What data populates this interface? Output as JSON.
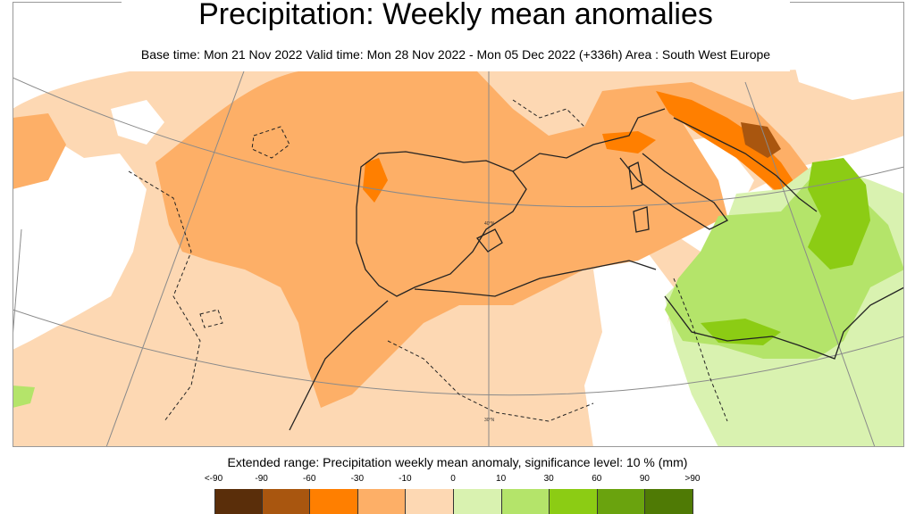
{
  "header": {
    "title": "Precipitation: Weekly mean anomalies",
    "subtitle": "Base time: Mon 21 Nov 2022 Valid time: Mon 28 Nov 2022 - Mon 05 Dec 2022 (+336h) Area : South West Europe"
  },
  "map": {
    "region": "South West Europe",
    "gridline_labels": [
      "40°N",
      "30°N"
    ]
  },
  "legend": {
    "caption": "Extended range: Precipitation weekly mean anomaly, significance level: 10 % (mm)",
    "labels": [
      "<-90",
      "-90",
      "-60",
      "-30",
      "-10",
      "0",
      "10",
      "30",
      "60",
      "90",
      ">90"
    ],
    "colors": [
      "#5a2e0a",
      "#a9560f",
      "#ff7f00",
      "#fdaf67",
      "#fdd8b3",
      "#d9f2b0",
      "#b4e46a",
      "#8ccc14",
      "#6aa30e",
      "#4f7a05"
    ]
  }
}
